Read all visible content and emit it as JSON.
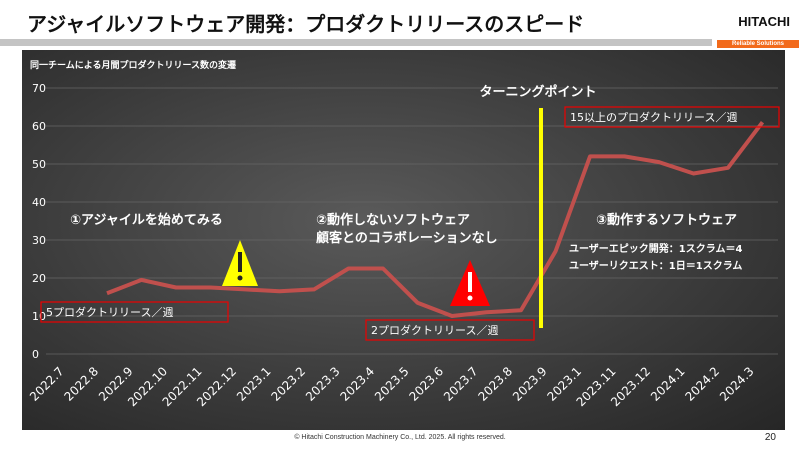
{
  "slide": {
    "title": "アジャイルソフトウェア開発：プロダクトリリースのスピード",
    "logo": "HITACHI",
    "tagline": "Reliable Solutions",
    "footer": "© Hitachi Construction Machinery Co., Ltd. 2025. All rights reserved.",
    "page_number": "20"
  },
  "chart_data": {
    "type": "line",
    "title": "同一チームによる月間プロダクトリリース数の変遷",
    "categories": [
      "2022.7",
      "2022.8",
      "2022.9",
      "2022.10",
      "2022.11",
      "2022.12",
      "2023.1",
      "2023.2",
      "2023.3",
      "2023.4",
      "2023.5",
      "2023.6",
      "2023.7",
      "2023.8",
      "2023.9",
      "2023.1",
      "2023.11",
      "2023.12",
      "2024.1",
      "2024.2",
      "2024.3"
    ],
    "values": [
      null,
      16,
      19.5,
      17.5,
      17.5,
      17,
      16.5,
      17,
      22.5,
      22.5,
      13.5,
      10,
      11,
      11.5,
      27,
      52,
      52,
      50.5,
      47.5,
      49,
      61
    ],
    "yticks": [
      0,
      10,
      20,
      30,
      40,
      50,
      60,
      70
    ],
    "ylim": [
      0,
      70
    ],
    "grid": true,
    "line_color": "#c0504d",
    "marker_color": "#ffff00",
    "annotations": {
      "turning_point": "ターニングポイント",
      "phase1": "①アジャイルを始めてみる",
      "phase2_line1": "②動作しないソフトウェア",
      "phase2_line2": "顧客とのコラボレーションなし",
      "phase3": "③動作するソフトウェア",
      "phase3_note1": "ユーザーエピック開発：1スクラム＝4",
      "phase3_note2": "ユーザーリクエスト：1日＝1スクラム",
      "box1": "5プロダクトリリース／週",
      "box2": "2プロダクトリリース／週",
      "box3": "15以上のプロダクトリリース／週"
    }
  }
}
